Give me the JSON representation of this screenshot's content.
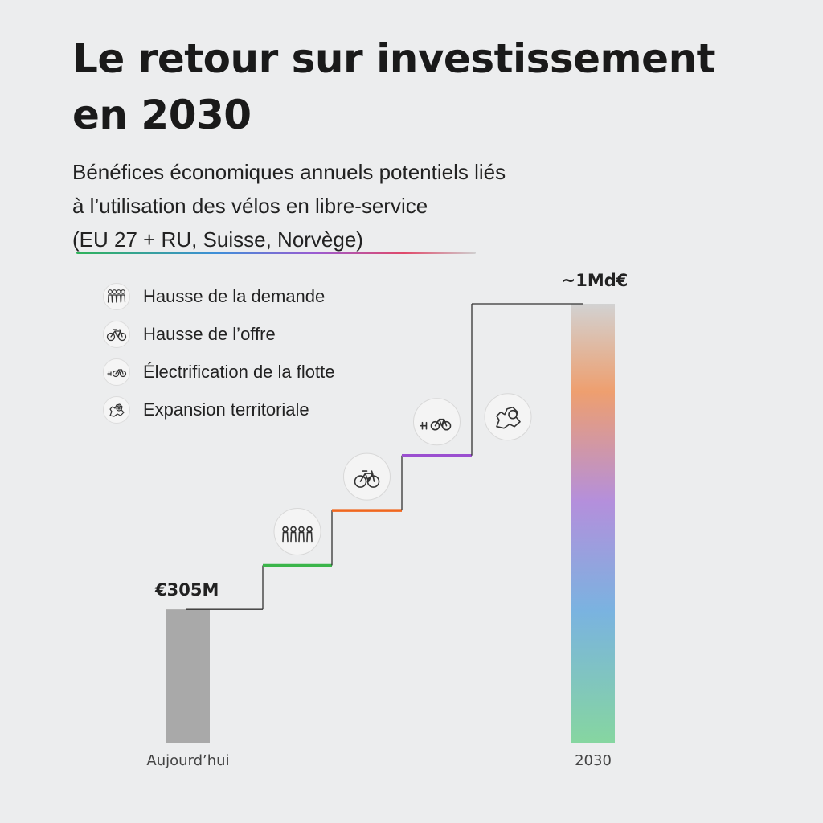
{
  "title": "Le retour sur investissement en 2030",
  "subtitle": [
    "Bénéfices économiques annuels potentiels liés",
    "à l’utilisation des vélos en libre-service",
    "(EU 27 + RU, Suisse, Norvège)"
  ],
  "legend": [
    {
      "label": "Hausse de la demande",
      "icon": "people-icon",
      "color": "#3bb54a"
    },
    {
      "label": "Hausse de l’offre",
      "icon": "bicycle-icon",
      "color": "#f0671f"
    },
    {
      "label": "Électrification de la flotte",
      "icon": "ebike-plug-icon",
      "color": "#9b4fd0"
    },
    {
      "label": "Expansion territoriale",
      "icon": "europe-map-icon",
      "color": "#333333"
    }
  ],
  "chart_data": {
    "type": "bar",
    "subtype": "waterfall",
    "unit": "€",
    "categories": [
      "Aujourd’hui",
      "Hausse de la demande",
      "Hausse de l’offre",
      "Électrification de la flotte",
      "Expansion territoriale",
      "2030"
    ],
    "axis_labels": [
      "Aujourd’hui",
      "2030"
    ],
    "start": {
      "label": "Aujourd’hui",
      "value": 305,
      "display": "€305M",
      "color": "#a9a9a9"
    },
    "steps": [
      {
        "label": "Hausse de la demande",
        "level": 405,
        "color": "#3bb54a",
        "icon": "people-icon"
      },
      {
        "label": "Hausse de l’offre",
        "level": 530,
        "color": "#f0671f",
        "icon": "bicycle-icon"
      },
      {
        "label": "Électrification de la flotte",
        "level": 655,
        "color": "#9b4fd0",
        "icon": "ebike-plug-icon"
      },
      {
        "label": "Expansion territoriale",
        "level": 1000,
        "color": "#333333",
        "icon": "europe-map-icon"
      }
    ],
    "end": {
      "label": "2030",
      "value": 1000,
      "display": "~1Md€",
      "gradient": [
        "#86d6a0",
        "#7ab3e0",
        "#b48fdc",
        "#ee9f6f",
        "#d2d2d2"
      ]
    },
    "values_unit": "M€",
    "ylim": [
      0,
      1000
    ],
    "grid": false,
    "legend_position": "top-left"
  }
}
